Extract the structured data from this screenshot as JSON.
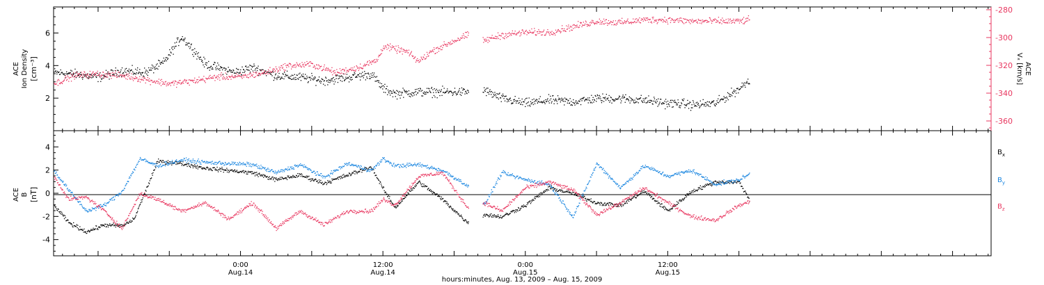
{
  "colors": {
    "black": "#000000",
    "red": "#e8365f",
    "blue": "#1a86e0"
  },
  "xaxis": {
    "title": "hours:minutes, Aug. 13, 2009 – Aug. 15, 2009",
    "range_hours": [
      -15.75,
      63.25
    ],
    "ticks": [
      {
        "hour": 0,
        "time": "0:00",
        "date": "Aug.14"
      },
      {
        "hour": 12,
        "time": "12:00",
        "date": "Aug.14"
      },
      {
        "hour": 24,
        "time": "0:00",
        "date": "Aug.15"
      },
      {
        "hour": 36,
        "time": "12:00",
        "date": "Aug.15"
      }
    ]
  },
  "chart_data": [
    {
      "type": "scatter",
      "panel": "top",
      "ylabel_left": {
        "line1": "ACE",
        "line2": "Ion Density",
        "unit": "[cm⁻³]"
      },
      "ylabel_right": {
        "line1": "ACE",
        "line2": "Vₓ [km/s]"
      },
      "ylim_left": [
        0,
        7.6
      ],
      "ylim_right": [
        -367,
        -278
      ],
      "yticks_left": [
        "2",
        "4",
        "6"
      ],
      "yticks_left_values": [
        2,
        4,
        6
      ],
      "yticks_right": [
        "-280",
        "-300",
        "-320",
        "-340",
        "-360"
      ],
      "yticks_right_values": [
        -280,
        -300,
        -320,
        -340,
        -360
      ],
      "data_gap_hours": [
        19.2,
        20.4
      ],
      "data_end_hour": 42.9,
      "series": [
        {
          "color": "#000000",
          "axis": "left",
          "x": [
            -15.75,
            -14,
            -12,
            -10,
            -8,
            -6.5,
            -5,
            -4,
            -3,
            -2,
            -0.5,
            1,
            3,
            5,
            7,
            9,
            11,
            12,
            13,
            15,
            17,
            19.1,
            20.5,
            22,
            24,
            26,
            28,
            30,
            32,
            34,
            36,
            37,
            38,
            40,
            42,
            42.9
          ],
          "y": [
            3.6,
            3.5,
            3.3,
            3.7,
            3.6,
            4.2,
            5.8,
            5.0,
            4.1,
            3.9,
            3.6,
            3.9,
            3.4,
            3.3,
            3.1,
            3.3,
            3.5,
            2.6,
            2.3,
            2.4,
            2.4,
            2.4,
            2.5,
            2.0,
            1.7,
            1.9,
            1.8,
            2.0,
            2.0,
            1.9,
            1.7,
            1.7,
            1.6,
            1.7,
            2.6,
            3.2
          ]
        },
        {
          "color": "#e8365f",
          "axis": "right",
          "x": [
            -15.75,
            -14,
            -12,
            -10,
            -8,
            -6,
            -4,
            -2,
            0,
            2,
            4,
            6,
            8,
            10,
            11.5,
            12,
            14,
            15,
            16,
            17,
            18,
            19.1,
            20.5,
            22,
            24,
            26,
            28,
            30,
            32,
            34,
            36,
            38,
            40,
            42,
            42.9
          ],
          "y": [
            -333,
            -327,
            -326,
            -327,
            -330,
            -333,
            -331,
            -328,
            -328,
            -325,
            -320,
            -319,
            -325,
            -321,
            -316,
            -306,
            -310,
            -317,
            -310,
            -306,
            -302,
            -298,
            -302,
            -298,
            -296,
            -296,
            -292,
            -288,
            -289,
            -287,
            -287,
            -288,
            -288,
            -288,
            -287
          ]
        }
      ]
    },
    {
      "type": "scatter",
      "panel": "bottom",
      "ylabel_left": {
        "line1": "ACE",
        "line2": "B",
        "unit": "[nT]"
      },
      "ylim": [
        -5.4,
        5.4
      ],
      "yticks": [
        "-4",
        "-2",
        "0",
        "2",
        "4"
      ],
      "yticks_values": [
        -4,
        -2,
        0,
        2,
        4
      ],
      "zero_line": true,
      "data_gap_hours": [
        19.2,
        20.4
      ],
      "data_end_hour": 42.9,
      "legend": [
        {
          "name": "B",
          "sub": "x",
          "color": "#000000"
        },
        {
          "name": "B",
          "sub": "y",
          "color": "#1a86e0"
        },
        {
          "name": "B",
          "sub": "z",
          "color": "#e8365f"
        }
      ],
      "series": [
        {
          "name": "Bx",
          "color": "#000000",
          "x": [
            -15.75,
            -14.5,
            -13,
            -11.5,
            -10,
            -9,
            -8,
            -7,
            -5,
            -3,
            -1,
            1,
            3,
            5,
            7,
            9,
            11,
            12,
            13,
            15,
            17,
            19.1,
            20.5,
            22,
            24,
            26,
            28,
            30,
            32,
            34,
            36,
            38,
            40,
            42,
            42.9
          ],
          "y": [
            -1.0,
            -2.5,
            -3.3,
            -2.7,
            -2.8,
            -2.2,
            0.3,
            2.8,
            2.6,
            2.2,
            2.0,
            1.8,
            1.2,
            1.6,
            0.9,
            1.6,
            2.3,
            0.4,
            -1.2,
            1.0,
            -0.5,
            -2.5,
            -1.8,
            -2.0,
            -1.0,
            0.5,
            0.0,
            -0.8,
            -1.0,
            0.2,
            -1.5,
            0.2,
            1.0,
            1.0,
            -0.6
          ]
        },
        {
          "name": "By",
          "color": "#1a86e0",
          "x": [
            -15.75,
            -14.5,
            -13,
            -11.5,
            -10,
            -8.5,
            -7,
            -5,
            -3,
            -1,
            1,
            3,
            5,
            7,
            9,
            11,
            12,
            13,
            15,
            17,
            19.1,
            20.5,
            22,
            24,
            26,
            28,
            30,
            32,
            34,
            36,
            38,
            40,
            42,
            42.9
          ],
          "y": [
            2.0,
            0.3,
            -1.5,
            -1.0,
            0.2,
            3.0,
            2.4,
            2.9,
            2.7,
            2.6,
            2.5,
            1.8,
            2.5,
            1.4,
            2.6,
            2.0,
            3.0,
            2.4,
            2.5,
            2.0,
            0.7,
            -1.0,
            1.8,
            1.2,
            0.8,
            -2.0,
            2.6,
            0.5,
            2.4,
            1.5,
            2.0,
            0.8,
            1.2,
            1.7
          ]
        },
        {
          "name": "Bz",
          "color": "#e8365f",
          "x": [
            -15.75,
            -14.5,
            -13,
            -11.5,
            -10,
            -8.5,
            -7,
            -5,
            -3,
            -1,
            1,
            3,
            5,
            7,
            9,
            11,
            12,
            13,
            15,
            17,
            19.1,
            20.5,
            22,
            24,
            26,
            28,
            30,
            32,
            34,
            36,
            38,
            40,
            42,
            42.9
          ],
          "y": [
            1.5,
            -0.5,
            -0.3,
            -1.5,
            -3.0,
            0.0,
            -0.5,
            -1.5,
            -0.8,
            -2.2,
            -0.8,
            -3.0,
            -1.5,
            -2.7,
            -1.5,
            -1.5,
            -0.5,
            -1.0,
            1.5,
            1.8,
            -1.2,
            -0.8,
            -1.5,
            0.5,
            1.0,
            0.3,
            -1.8,
            -0.8,
            0.5,
            -0.8,
            -2.0,
            -2.3,
            -1.0,
            -0.7
          ]
        }
      ]
    }
  ]
}
